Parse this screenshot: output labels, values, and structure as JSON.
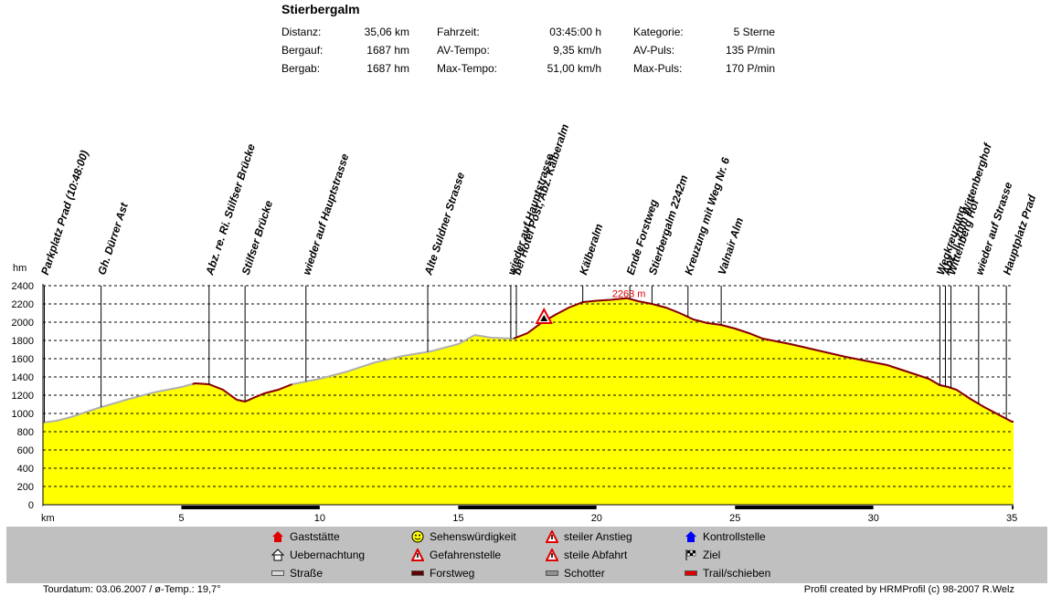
{
  "title": "Stierbergalm",
  "stats": {
    "col1": [
      {
        "label": "Distanz:",
        "value": "35,06 km"
      },
      {
        "label": "Bergauf:",
        "value": "1687 hm"
      },
      {
        "label": "Bergab:",
        "value": "1687 hm"
      }
    ],
    "col2": [
      {
        "label": "Fahrzeit:",
        "value": "03:45:00 h"
      },
      {
        "label": "AV-Tempo:",
        "value": "9,35 km/h"
      },
      {
        "label": "Max-Tempo:",
        "value": "51,00 km/h"
      }
    ],
    "col3": [
      {
        "label": "Kategorie:",
        "value": "5 Sterne"
      },
      {
        "label": "AV-Puls:",
        "value": "135 P/min"
      },
      {
        "label": "Max-Puls:",
        "value": "170 P/min"
      }
    ]
  },
  "legend": [
    {
      "label": "Gaststätte",
      "icon": "house-red-icon",
      "color": "#e00000"
    },
    {
      "label": "Uebernachtung",
      "icon": "bed-house-icon",
      "color": "#ffffff"
    },
    {
      "label": "Straße",
      "icon": "road-surface-icon",
      "color": "#d8d8d8"
    },
    {
      "label": "Sehenswürdigkeit",
      "icon": "smiley-icon",
      "color": "#ffff00"
    },
    {
      "label": "Gefahrenstelle",
      "icon": "warning-icon",
      "color": "#e00000"
    },
    {
      "label": "Forstweg",
      "icon": "forest-road-surface-icon",
      "color": "#600000"
    },
    {
      "label": "steiler Anstieg",
      "icon": "steep-climb-icon",
      "color": "#e00000"
    },
    {
      "label": "steile Abfahrt",
      "icon": "steep-descent-icon",
      "color": "#e00000"
    },
    {
      "label": "Schotter",
      "icon": "gravel-surface-icon",
      "color": "#909090"
    },
    {
      "label": "Kontrollstelle",
      "icon": "checkpoint-house-icon",
      "color": "#0000ff"
    },
    {
      "label": "Ziel",
      "icon": "checkered-flag-icon",
      "color": "#000000"
    },
    {
      "label": "Trail/schieben",
      "icon": "trail-surface-icon",
      "color": "#e00000"
    }
  ],
  "footer": {
    "left": "Tourdatum: 03.06.2007  /  ø-Temp.: 19,7°",
    "right": "Profil created by HRMProfil (c) 98-2007 R.Welz"
  },
  "chart_data": {
    "type": "area",
    "ylabel": "hm",
    "xlabel": "km",
    "xlim": [
      0,
      35.06
    ],
    "ylim": [
      0,
      2400
    ],
    "yticks": [
      0,
      200,
      400,
      600,
      800,
      1000,
      1200,
      1400,
      1600,
      1800,
      2000,
      2200,
      2400
    ],
    "xticks": [
      5,
      10,
      15,
      20,
      25,
      30,
      35
    ],
    "grid": true,
    "fill_color": "#ffff00",
    "max_label": "2263 m",
    "max_point": {
      "km": 21.1,
      "alt": 2263
    },
    "profile": [
      [
        0,
        900
      ],
      [
        0.5,
        920
      ],
      [
        1,
        960
      ],
      [
        2,
        1060
      ],
      [
        3,
        1150
      ],
      [
        4,
        1230
      ],
      [
        5,
        1290
      ],
      [
        5.5,
        1330
      ],
      [
        6,
        1320
      ],
      [
        6.5,
        1260
      ],
      [
        7,
        1150
      ],
      [
        7.3,
        1130
      ],
      [
        7.6,
        1170
      ],
      [
        8,
        1220
      ],
      [
        8.5,
        1260
      ],
      [
        9,
        1320
      ],
      [
        9.5,
        1350
      ],
      [
        10,
        1380
      ],
      [
        11,
        1460
      ],
      [
        12,
        1560
      ],
      [
        13,
        1630
      ],
      [
        14,
        1680
      ],
      [
        15,
        1760
      ],
      [
        15.6,
        1860
      ],
      [
        16.2,
        1830
      ],
      [
        17,
        1820
      ],
      [
        17.5,
        1880
      ],
      [
        18,
        1990
      ],
      [
        18.5,
        2080
      ],
      [
        19,
        2160
      ],
      [
        19.5,
        2220
      ],
      [
        20,
        2235
      ],
      [
        20.5,
        2245
      ],
      [
        21.1,
        2263
      ],
      [
        21.5,
        2230
      ],
      [
        22,
        2200
      ],
      [
        22.5,
        2160
      ],
      [
        23,
        2100
      ],
      [
        23.5,
        2030
      ],
      [
        24,
        1990
      ],
      [
        24.5,
        1970
      ],
      [
        25,
        1930
      ],
      [
        25.5,
        1880
      ],
      [
        26,
        1820
      ],
      [
        27,
        1760
      ],
      [
        28,
        1690
      ],
      [
        29,
        1620
      ],
      [
        30,
        1560
      ],
      [
        30.5,
        1530
      ],
      [
        31,
        1480
      ],
      [
        31.5,
        1430
      ],
      [
        32,
        1380
      ],
      [
        32.4,
        1310
      ],
      [
        32.7,
        1290
      ],
      [
        33,
        1260
      ],
      [
        33.5,
        1160
      ],
      [
        34,
        1070
      ],
      [
        34.5,
        990
      ],
      [
        35,
        910
      ],
      [
        35.06,
        910
      ]
    ],
    "trail_segments": [
      [
        5.4,
        7.4
      ],
      [
        7.4,
        9.0
      ],
      [
        17.0,
        35.06
      ]
    ],
    "surface_bar": [
      {
        "from": 0,
        "to": 5,
        "type": "Straße"
      },
      {
        "from": 5,
        "to": 10,
        "type": "Forstweg"
      },
      {
        "from": 10,
        "to": 15,
        "type": "Straße"
      },
      {
        "from": 15,
        "to": 20,
        "type": "Forstweg"
      },
      {
        "from": 20,
        "to": 25,
        "type": "Straße"
      },
      {
        "from": 25,
        "to": 30,
        "type": "Forstweg"
      },
      {
        "from": 30,
        "to": 35,
        "type": "Straße"
      },
      {
        "from": 35,
        "to": 35.06,
        "type": "Forstweg"
      }
    ],
    "hazard": {
      "km": 18.1,
      "alt": 2050
    },
    "waypoints": [
      {
        "km": 0.05,
        "label": "Parkplatz Prad (10:48:00)"
      },
      {
        "km": 2.1,
        "label": "Gh. Dürrer Ast"
      },
      {
        "km": 6.0,
        "label": "Abz. re. Ri. Stilfser Brücke"
      },
      {
        "km": 7.3,
        "label": "Stilfser Brücke"
      },
      {
        "km": 9.5,
        "label": "wieder auf Hauptstrasse"
      },
      {
        "km": 13.9,
        "label": "Alte Suldner Strasse"
      },
      {
        "km": 16.9,
        "label": "wieder auf Hauptstrasse"
      },
      {
        "km": 17.1,
        "label": "bei Hotel Post, Abz. Kälberalm"
      },
      {
        "km": 19.5,
        "label": "Kälberalm"
      },
      {
        "km": 21.2,
        "label": "Ende Forstweg"
      },
      {
        "km": 22.0,
        "label": "Stierbergalm 2242m"
      },
      {
        "km": 23.3,
        "label": "Kreuzung mit Weg Nr. 6"
      },
      {
        "km": 24.5,
        "label": "Valnair Alm"
      },
      {
        "km": 32.4,
        "label": "Wegkreuzung"
      },
      {
        "km": 32.8,
        "label": "Wittenberg Hof"
      },
      {
        "km": 32.6,
        "label": "Abz. li. zum Wittenberghof"
      },
      {
        "km": 33.8,
        "label": "wieder auf Strasse"
      },
      {
        "km": 34.8,
        "label": "Hauptplatz Prad"
      }
    ]
  }
}
